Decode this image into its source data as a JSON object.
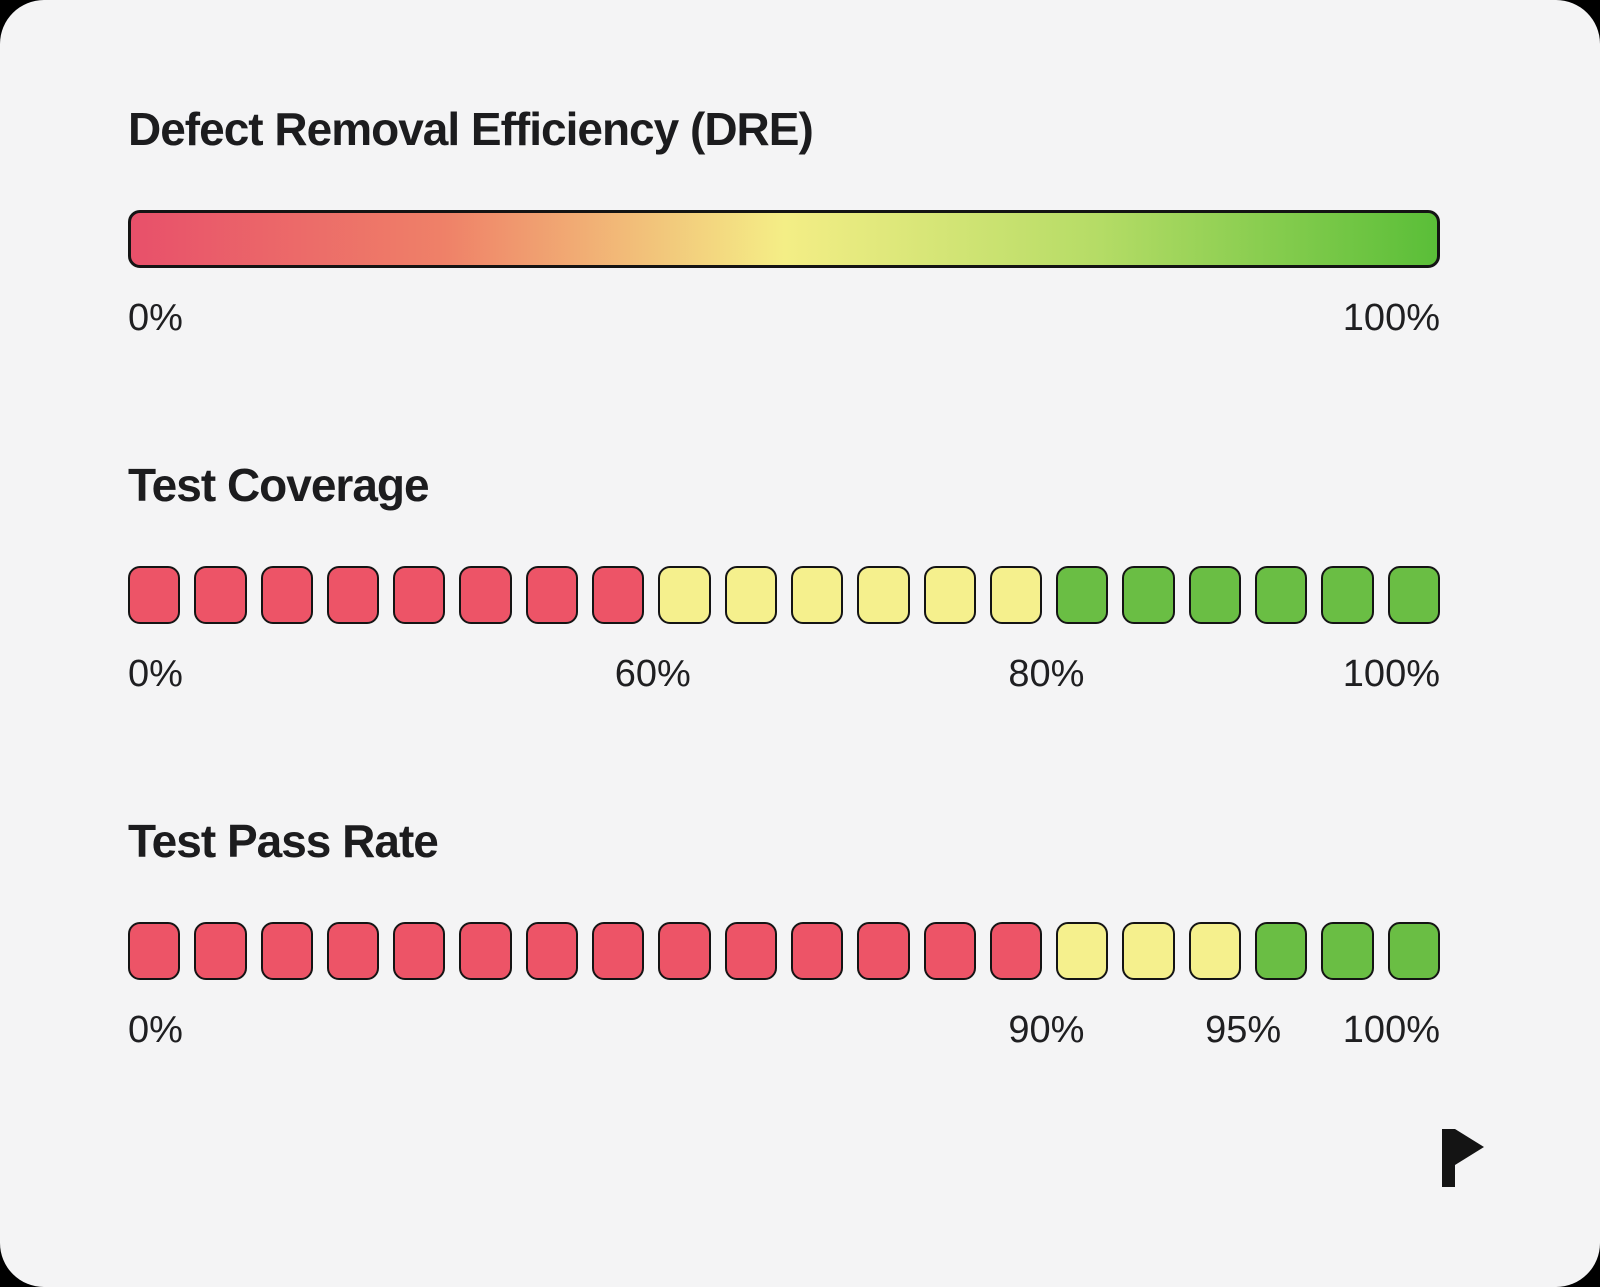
{
  "card": {
    "page_background": "#000000",
    "card_background": "#f4f4f5",
    "border_color": "#141414"
  },
  "chart_data": [
    {
      "type": "gradient-scale",
      "title": "Defect Removal Efficiency (DRE)",
      "gradient_stops": [
        "#e8506a 0%",
        "#ef8168 24%",
        "#f4ee86 50%",
        "#b5dc66 74%",
        "#5abe38 100%"
      ],
      "range": [
        0,
        100
      ],
      "ticks": [
        {
          "label": "0%",
          "pos": 0,
          "align": "left"
        },
        {
          "label": "100%",
          "pos": 1,
          "align": "right"
        }
      ]
    },
    {
      "type": "discrete-scale",
      "title": "Test Coverage",
      "range": [
        0,
        100
      ],
      "segments": [
        {
          "color": "#ed5467",
          "count": 8,
          "range": "0-60%"
        },
        {
          "color": "#f5f08d",
          "count": 6,
          "range": "60-80%"
        },
        {
          "color": "#6abe44",
          "count": 6,
          "range": "80-100%"
        }
      ],
      "ticks": [
        {
          "label": "0%",
          "pos": 0,
          "align": "left"
        },
        {
          "label": "60%",
          "pos": 0.4,
          "align": "center"
        },
        {
          "label": "80%",
          "pos": 0.7,
          "align": "center"
        },
        {
          "label": "100%",
          "pos": 1,
          "align": "right"
        }
      ]
    },
    {
      "type": "discrete-scale",
      "title": "Test Pass Rate",
      "range": [
        0,
        100
      ],
      "segments": [
        {
          "color": "#ed5467",
          "count": 14,
          "range": "0-90%"
        },
        {
          "color": "#f5f08d",
          "count": 3,
          "range": "90-95%"
        },
        {
          "color": "#6abe44",
          "count": 3,
          "range": "95-100%"
        }
      ],
      "ticks": [
        {
          "label": "0%",
          "pos": 0,
          "align": "left"
        },
        {
          "label": "90%",
          "pos": 0.7,
          "align": "center"
        },
        {
          "label": "95%",
          "pos": 0.85,
          "align": "center"
        },
        {
          "label": "100%",
          "pos": 1,
          "align": "right"
        }
      ]
    }
  ]
}
